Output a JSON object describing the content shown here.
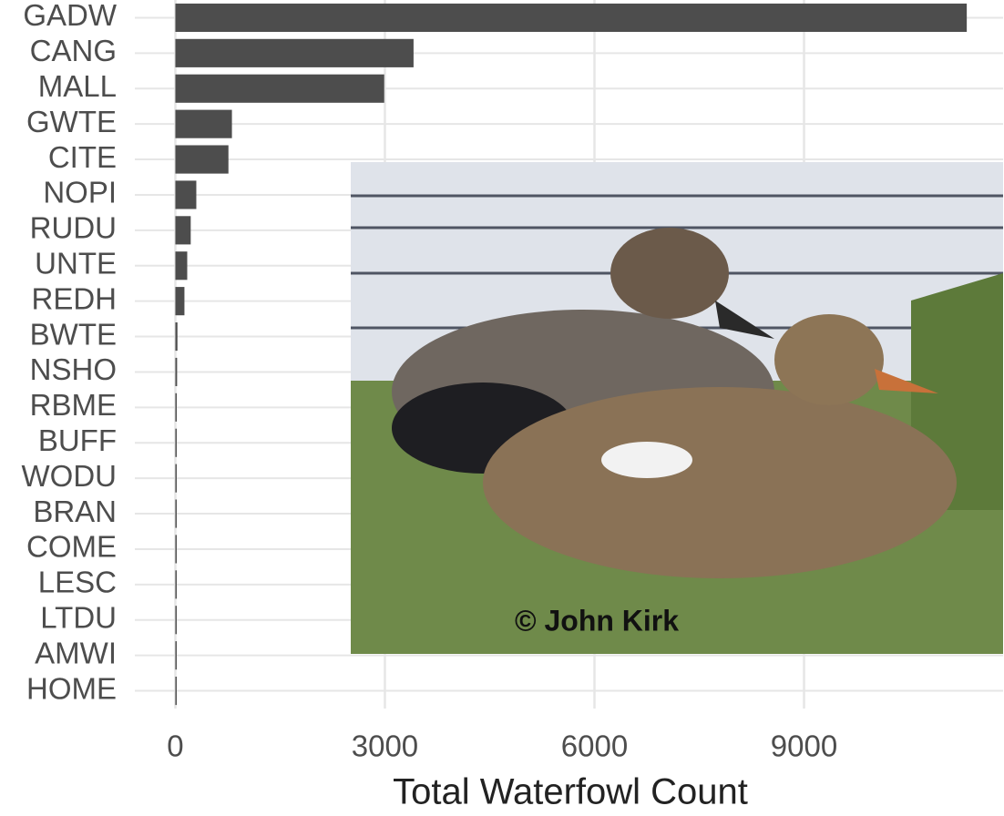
{
  "chart_data": {
    "type": "bar",
    "orientation": "horizontal",
    "x_label": "Total Waterfowl Count",
    "categories": [
      "GADW",
      "CANG",
      "MALL",
      "GWTE",
      "CITE",
      "NOPI",
      "RUDU",
      "UNTE",
      "REDH",
      "BWTE",
      "NSHO",
      "RBME",
      "BUFF",
      "WODU",
      "BRAN",
      "COME",
      "LESC",
      "LTDU",
      "AMWI",
      "HOME"
    ],
    "values": [
      11330,
      3410,
      2990,
      810,
      760,
      300,
      220,
      170,
      130,
      30,
      25,
      20,
      18,
      15,
      12,
      10,
      8,
      6,
      5,
      2
    ],
    "color": "#4d4d4d",
    "xlim": [
      -580,
      11850
    ],
    "xticks": [
      0,
      3000,
      6000,
      9000
    ],
    "grid": true
  },
  "photo_credit": "© John Kirk"
}
